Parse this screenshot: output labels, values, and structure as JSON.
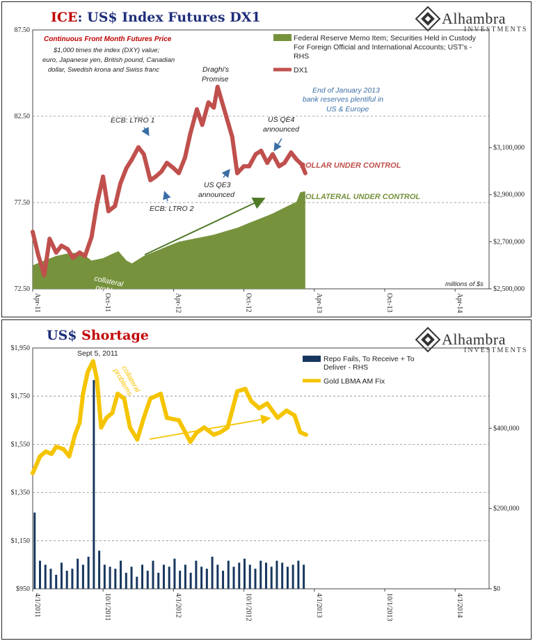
{
  "charts": [
    {
      "title_prefix": "ICE",
      "title_rest": ": US$ Index Futures DX1",
      "logo": {
        "name": "Alhambra",
        "sub": "INVESTMENTS"
      },
      "subtitle_lines": [
        "Continuous  Front Month Futures Price"
      ],
      "note_lines": [
        "$1,000 times the index (DXY) value;",
        "euro, Japanese yen, British pound, Canadian",
        "dollar, Swedish krona and Swiss franc"
      ],
      "units_label": "millions of $s",
      "left_ticks": [
        "87.50",
        "82.50",
        "77.50",
        "72.50"
      ],
      "right_ticks": [
        "$3,100,000",
        "$2,900,000",
        "$2,700,000",
        "$2,500,000"
      ],
      "x_ticks": [
        "Apr-11",
        "Oct-11",
        "Apr-12",
        "Oct-12",
        "Apr-13",
        "Oct-13",
        "Apr-14"
      ],
      "legend": [
        {
          "label_lines": [
            "Federal Reserve Memo Item; Securities Held in Custody",
            "For Foreign Official and International Accounts; UST's -",
            "RHS"
          ],
          "color": "#76923c"
        },
        {
          "label_lines": [
            "DX1"
          ],
          "color": "#c0504d"
        }
      ],
      "annotations": [
        {
          "lines": [
            "ECB: LTRO 1"
          ]
        },
        {
          "lines": [
            "ECB: LTRO 2"
          ]
        },
        {
          "lines": [
            "Draghi's",
            "Promise"
          ]
        },
        {
          "lines": [
            "US QE3",
            "announced"
          ]
        },
        {
          "lines": [
            "US QE4",
            "announced"
          ]
        },
        {
          "lines": [
            "End of January 2013",
            "bank reserves plentiful in",
            "US & Europe"
          ]
        },
        {
          "lines": [
            "DOLLAR UNDER CONTROL"
          ]
        },
        {
          "lines": [
            "COLLATERAL UNDER CONTROL"
          ]
        },
        {
          "lines": [
            "collateral",
            "problems"
          ]
        }
      ],
      "chart_data": {
        "type": "line",
        "x_axis": "date",
        "xlim": [
          "2011-04-01",
          "2014-07-01"
        ],
        "series": [
          {
            "name": "DX1",
            "axis": "left",
            "ylim": [
              72.5,
              87.5
            ],
            "color": "#c0504d",
            "x": [
              "2011-04-01",
              "2011-04-15",
              "2011-05-01",
              "2011-05-15",
              "2011-06-01",
              "2011-06-15",
              "2011-07-01",
              "2011-07-15",
              "2011-08-01",
              "2011-08-15",
              "2011-09-01",
              "2011-09-15",
              "2011-10-01",
              "2011-10-15",
              "2011-11-01",
              "2011-11-15",
              "2011-12-01",
              "2011-12-15",
              "2012-01-01",
              "2012-01-15",
              "2012-02-01",
              "2012-02-15",
              "2012-03-01",
              "2012-03-15",
              "2012-04-01",
              "2012-04-15",
              "2012-05-01",
              "2012-05-15",
              "2012-06-01",
              "2012-06-15",
              "2012-07-01",
              "2012-07-15",
              "2012-07-25",
              "2012-08-15",
              "2012-09-01",
              "2012-09-14",
              "2012-10-01",
              "2012-10-15",
              "2012-11-01",
              "2012-11-15",
              "2012-12-01",
              "2012-12-15",
              "2013-01-01",
              "2013-01-15",
              "2013-02-01",
              "2013-02-15",
              "2013-03-01",
              "2013-03-10"
            ],
            "y": [
              75.8,
              74.5,
              73.3,
              75.4,
              74.6,
              75.0,
              74.8,
              74.3,
              74.6,
              74.4,
              75.5,
              77.4,
              79.0,
              77.0,
              77.3,
              78.6,
              79.5,
              80.0,
              80.7,
              80.3,
              78.8,
              79.0,
              79.3,
              79.8,
              79.5,
              79.2,
              80.1,
              81.5,
              82.9,
              82.0,
              83.3,
              83.0,
              84.2,
              82.6,
              81.3,
              79.2,
              79.6,
              79.6,
              80.3,
              80.5,
              79.8,
              80.3,
              79.6,
              79.8,
              80.4,
              80.0,
              79.7,
              79.2
            ]
          },
          {
            "name": "Federal Reserve Memo Item; Securities Held in Custody For Foreign Official and International Accounts; UST's - RHS",
            "axis": "right",
            "ylim": [
              2500000,
              3600000
            ],
            "color": "#76923c",
            "x": [
              "2011-04-01",
              "2011-05-01",
              "2011-06-01",
              "2011-07-01",
              "2011-08-01",
              "2011-08-20",
              "2011-09-01",
              "2011-10-01",
              "2011-10-20",
              "2011-11-10",
              "2011-12-01",
              "2011-12-15",
              "2012-01-15",
              "2012-02-15",
              "2012-03-15",
              "2012-04-15",
              "2012-05-15",
              "2012-06-15",
              "2012-07-15",
              "2012-08-15",
              "2012-09-15",
              "2012-10-15",
              "2012-11-15",
              "2012-12-15",
              "2013-01-15",
              "2013-02-15",
              "2013-02-25",
              "2013-03-10"
            ],
            "y": [
              2600000,
              2620000,
              2640000,
              2650000,
              2655000,
              2635000,
              2620000,
              2630000,
              2645000,
              2660000,
              2620000,
              2608000,
              2640000,
              2660000,
              2680000,
              2700000,
              2710000,
              2720000,
              2730000,
              2745000,
              2760000,
              2780000,
              2800000,
              2820000,
              2845000,
              2870000,
              2910000,
              2915000
            ]
          }
        ]
      }
    },
    {
      "title_prefix": "US$ ",
      "title_rest": "Shortage",
      "logo": {
        "name": "Alhambra",
        "sub": "INVESTMENTS"
      },
      "left_ticks": [
        "$1,950",
        "$1,750",
        "$1,550",
        "$1,350",
        "$1,150",
        "$950"
      ],
      "right_ticks": [
        "$400,000",
        "$200,000",
        "$0"
      ],
      "x_ticks": [
        "4/1/2011",
        "10/1/2011",
        "4/1/2012",
        "10/1/2012",
        "4/1/2013",
        "10/1/2013",
        "4/1/2014"
      ],
      "legend": [
        {
          "label_lines": [
            "Repo Fails, To Receive + To",
            "Deliver - RHS"
          ],
          "color": "#17375e"
        },
        {
          "label_lines": [
            "Gold LBMA AM Fix"
          ],
          "color": "#f5c400"
        }
      ],
      "annotations": [
        {
          "lines": [
            "Sept 5, 2011"
          ]
        },
        {
          "lines": [
            "collateral",
            "problems"
          ]
        }
      ],
      "chart_data": {
        "type": "bar+line",
        "x_axis": "date",
        "xlim": [
          "2011-04-01",
          "2014-07-01"
        ],
        "series": [
          {
            "name": "Gold LBMA AM Fix",
            "type": "line",
            "axis": "left",
            "ylim": [
              950,
              1950
            ],
            "color": "#f5c400",
            "x": [
              "2011-04-01",
              "2011-04-20",
              "2011-05-05",
              "2011-05-20",
              "2011-06-01",
              "2011-06-20",
              "2011-07-05",
              "2011-07-20",
              "2011-08-01",
              "2011-08-10",
              "2011-08-22",
              "2011-09-05",
              "2011-09-15",
              "2011-09-26",
              "2011-10-10",
              "2011-10-25",
              "2011-11-08",
              "2011-11-25",
              "2011-12-10",
              "2011-12-29",
              "2012-01-15",
              "2012-02-01",
              "2012-02-28",
              "2012-03-15",
              "2012-04-15",
              "2012-05-15",
              "2012-06-01",
              "2012-06-20",
              "2012-07-15",
              "2012-08-01",
              "2012-08-20",
              "2012-09-14",
              "2012-10-05",
              "2012-10-20",
              "2012-11-10",
              "2012-12-01",
              "2012-12-28",
              "2013-01-20",
              "2013-02-10",
              "2013-02-25",
              "2013-03-12"
            ],
            "y": [
              1430,
              1500,
              1520,
              1510,
              1540,
              1530,
              1500,
              1590,
              1640,
              1760,
              1850,
              1895,
              1820,
              1620,
              1660,
              1680,
              1760,
              1740,
              1620,
              1570,
              1660,
              1740,
              1760,
              1660,
              1650,
              1560,
              1600,
              1620,
              1590,
              1600,
              1620,
              1770,
              1780,
              1730,
              1700,
              1720,
              1660,
              1690,
              1670,
              1600,
              1590
            ]
          },
          {
            "name": "Repo Fails, To Receive + To Deliver - RHS",
            "type": "bar",
            "axis": "right",
            "ylim": [
              0,
              600000
            ],
            "color": "#17375e",
            "x": [
              "2011-04-06",
              "2011-04-20",
              "2011-05-04",
              "2011-05-18",
              "2011-06-01",
              "2011-06-15",
              "2011-06-29",
              "2011-07-13",
              "2011-07-27",
              "2011-08-10",
              "2011-08-24",
              "2011-09-07",
              "2011-09-21",
              "2011-10-05",
              "2011-10-19",
              "2011-11-02",
              "2011-11-16",
              "2011-11-30",
              "2011-12-14",
              "2011-12-28",
              "2012-01-11",
              "2012-01-25",
              "2012-02-08",
              "2012-02-22",
              "2012-03-07",
              "2012-03-21",
              "2012-04-04",
              "2012-04-18",
              "2012-05-02",
              "2012-05-16",
              "2012-05-30",
              "2012-06-13",
              "2012-06-27",
              "2012-07-11",
              "2012-07-25",
              "2012-08-08",
              "2012-08-22",
              "2012-09-05",
              "2012-09-19",
              "2012-10-03",
              "2012-10-17",
              "2012-10-31",
              "2012-11-14",
              "2012-11-28",
              "2012-12-12",
              "2012-12-26",
              "2013-01-09",
              "2013-01-23",
              "2013-02-06",
              "2013-02-20",
              "2013-03-06"
            ],
            "y": [
              190000,
              70000,
              60000,
              50000,
              35000,
              65000,
              45000,
              50000,
              75000,
              60000,
              80000,
              520000,
              95000,
              60000,
              55000,
              50000,
              70000,
              40000,
              55000,
              30000,
              60000,
              45000,
              70000,
              40000,
              60000,
              55000,
              75000,
              45000,
              60000,
              40000,
              70000,
              55000,
              50000,
              80000,
              60000,
              45000,
              70000,
              55000,
              65000,
              75000,
              60000,
              50000,
              70000,
              65000,
              55000,
              70000,
              65000,
              55000,
              60000,
              70000,
              60000
            ]
          }
        ]
      }
    }
  ]
}
